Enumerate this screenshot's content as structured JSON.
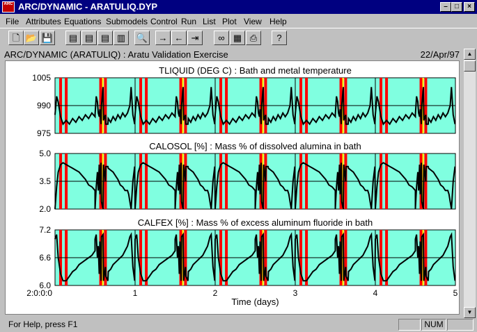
{
  "window": {
    "title": "ARC/DYNAMIC - ARATULIQ.DYP",
    "app_icon_text": "ARC",
    "controls": {
      "minimize": "–",
      "maximize": "□",
      "close": "×"
    }
  },
  "menu": [
    "File",
    "Attributes",
    "Equations",
    "Submodels",
    "Control",
    "Run",
    "List",
    "Plot",
    "View",
    "Help"
  ],
  "toolbar": {
    "buttons": [
      {
        "name": "new-icon",
        "glyph": "🗋"
      },
      {
        "name": "open-icon",
        "glyph": "📂"
      },
      {
        "name": "save-icon",
        "glyph": "💾"
      },
      {
        "name": "attributes-icon",
        "glyph": "▤"
      },
      {
        "name": "equations-icon",
        "glyph": "▤"
      },
      {
        "name": "submodels-icon",
        "glyph": "▤"
      },
      {
        "name": "control-icon",
        "glyph": "▥"
      },
      {
        "name": "zoom-icon",
        "glyph": "🔍"
      },
      {
        "name": "forward-arrow-icon",
        "glyph": "→"
      },
      {
        "name": "back-arrow-icon",
        "glyph": "←"
      },
      {
        "name": "step-icon",
        "glyph": "⇥"
      },
      {
        "name": "glasses-icon",
        "glyph": "∞"
      },
      {
        "name": "calculator-icon",
        "glyph": "▦"
      },
      {
        "name": "print-icon",
        "glyph": "⎙"
      },
      {
        "name": "help-pointer-icon",
        "glyph": "?"
      }
    ]
  },
  "document": {
    "title": "ARC/DYNAMIC (ARATULIQ) : Aratu Validation Exercise",
    "date": "22/Apr/97"
  },
  "chart_data": [
    {
      "type": "line",
      "title": "TLIQUID (DEG C) : Bath and metal temperature",
      "ylim": [
        975,
        1005
      ],
      "yticks": [
        "1005",
        "990",
        "975"
      ],
      "grid": true,
      "x": [
        0.0,
        0.02,
        0.04,
        0.07,
        0.1,
        0.14,
        0.18,
        0.22,
        0.26,
        0.3,
        0.34,
        0.38,
        0.42,
        0.46,
        0.5,
        0.54,
        0.56,
        0.58,
        0.6,
        0.63,
        0.66
      ],
      "values": [
        985,
        995,
        992,
        984,
        980,
        982,
        980,
        983,
        981,
        984,
        982,
        985,
        983,
        986,
        984,
        986,
        988,
        990,
        1000,
        985,
        980
      ]
    },
    {
      "type": "line",
      "title": "CALOSOL [%] : Mass % of dissolved alumina in bath",
      "ylim": [
        2.0,
        5.0
      ],
      "yticks": [
        "5.0",
        "3.5",
        "2.0"
      ],
      "grid": true,
      "x": [
        0.0,
        0.02,
        0.04,
        0.07,
        0.1,
        0.14,
        0.18,
        0.22,
        0.26,
        0.3,
        0.34,
        0.38,
        0.42,
        0.46,
        0.5,
        0.54,
        0.56,
        0.58,
        0.6,
        0.63,
        0.66
      ],
      "values": [
        2.0,
        3.2,
        4.0,
        4.4,
        4.5,
        4.4,
        4.3,
        4.2,
        4.1,
        4.0,
        3.8,
        3.6,
        3.3,
        3.2,
        3.0,
        3.0,
        2.8,
        2.4,
        2.0,
        3.5,
        4.3
      ]
    },
    {
      "type": "line",
      "title": "CALFEX [%] : Mass % of excess aluminum fluoride in bath",
      "ylim": [
        6.0,
        7.2
      ],
      "yticks": [
        "7.2",
        "6.6",
        "6.0"
      ],
      "grid": true,
      "xticks": [
        "2:0:0:0",
        "1",
        "2",
        "3",
        "4",
        "5"
      ],
      "xlabel": "Time (days)",
      "x": [
        0.0,
        0.02,
        0.04,
        0.07,
        0.1,
        0.14,
        0.18,
        0.22,
        0.26,
        0.3,
        0.34,
        0.38,
        0.42,
        0.46,
        0.5,
        0.54,
        0.56,
        0.58,
        0.6,
        0.63,
        0.66
      ],
      "values": [
        7.0,
        7.1,
        6.6,
        6.25,
        6.1,
        6.1,
        6.2,
        6.3,
        6.35,
        6.45,
        6.5,
        6.55,
        6.6,
        6.65,
        6.75,
        6.85,
        6.95,
        7.05,
        7.1,
        6.4,
        6.1
      ]
    }
  ],
  "events": {
    "period_days": 0.5,
    "red_bars": [
      0.07,
      0.14,
      0.57,
      0.63,
      1.07,
      1.14,
      1.57,
      1.63,
      2.07,
      2.14,
      2.57,
      2.63,
      3.07,
      3.14,
      3.57,
      3.63,
      4.07,
      4.14,
      4.57,
      4.63
    ],
    "yellow_bars": [
      0.58,
      1.58,
      2.58,
      3.58,
      4.58
    ],
    "colors": {
      "plot_bg": "#80ffe0",
      "red": "#ff0000",
      "yellow": "#ffff00",
      "line": "#000000"
    }
  },
  "status": {
    "help_text": "For Help, press F1",
    "num": "NUM"
  },
  "scroll": {
    "up": "▲",
    "down": "▼"
  }
}
